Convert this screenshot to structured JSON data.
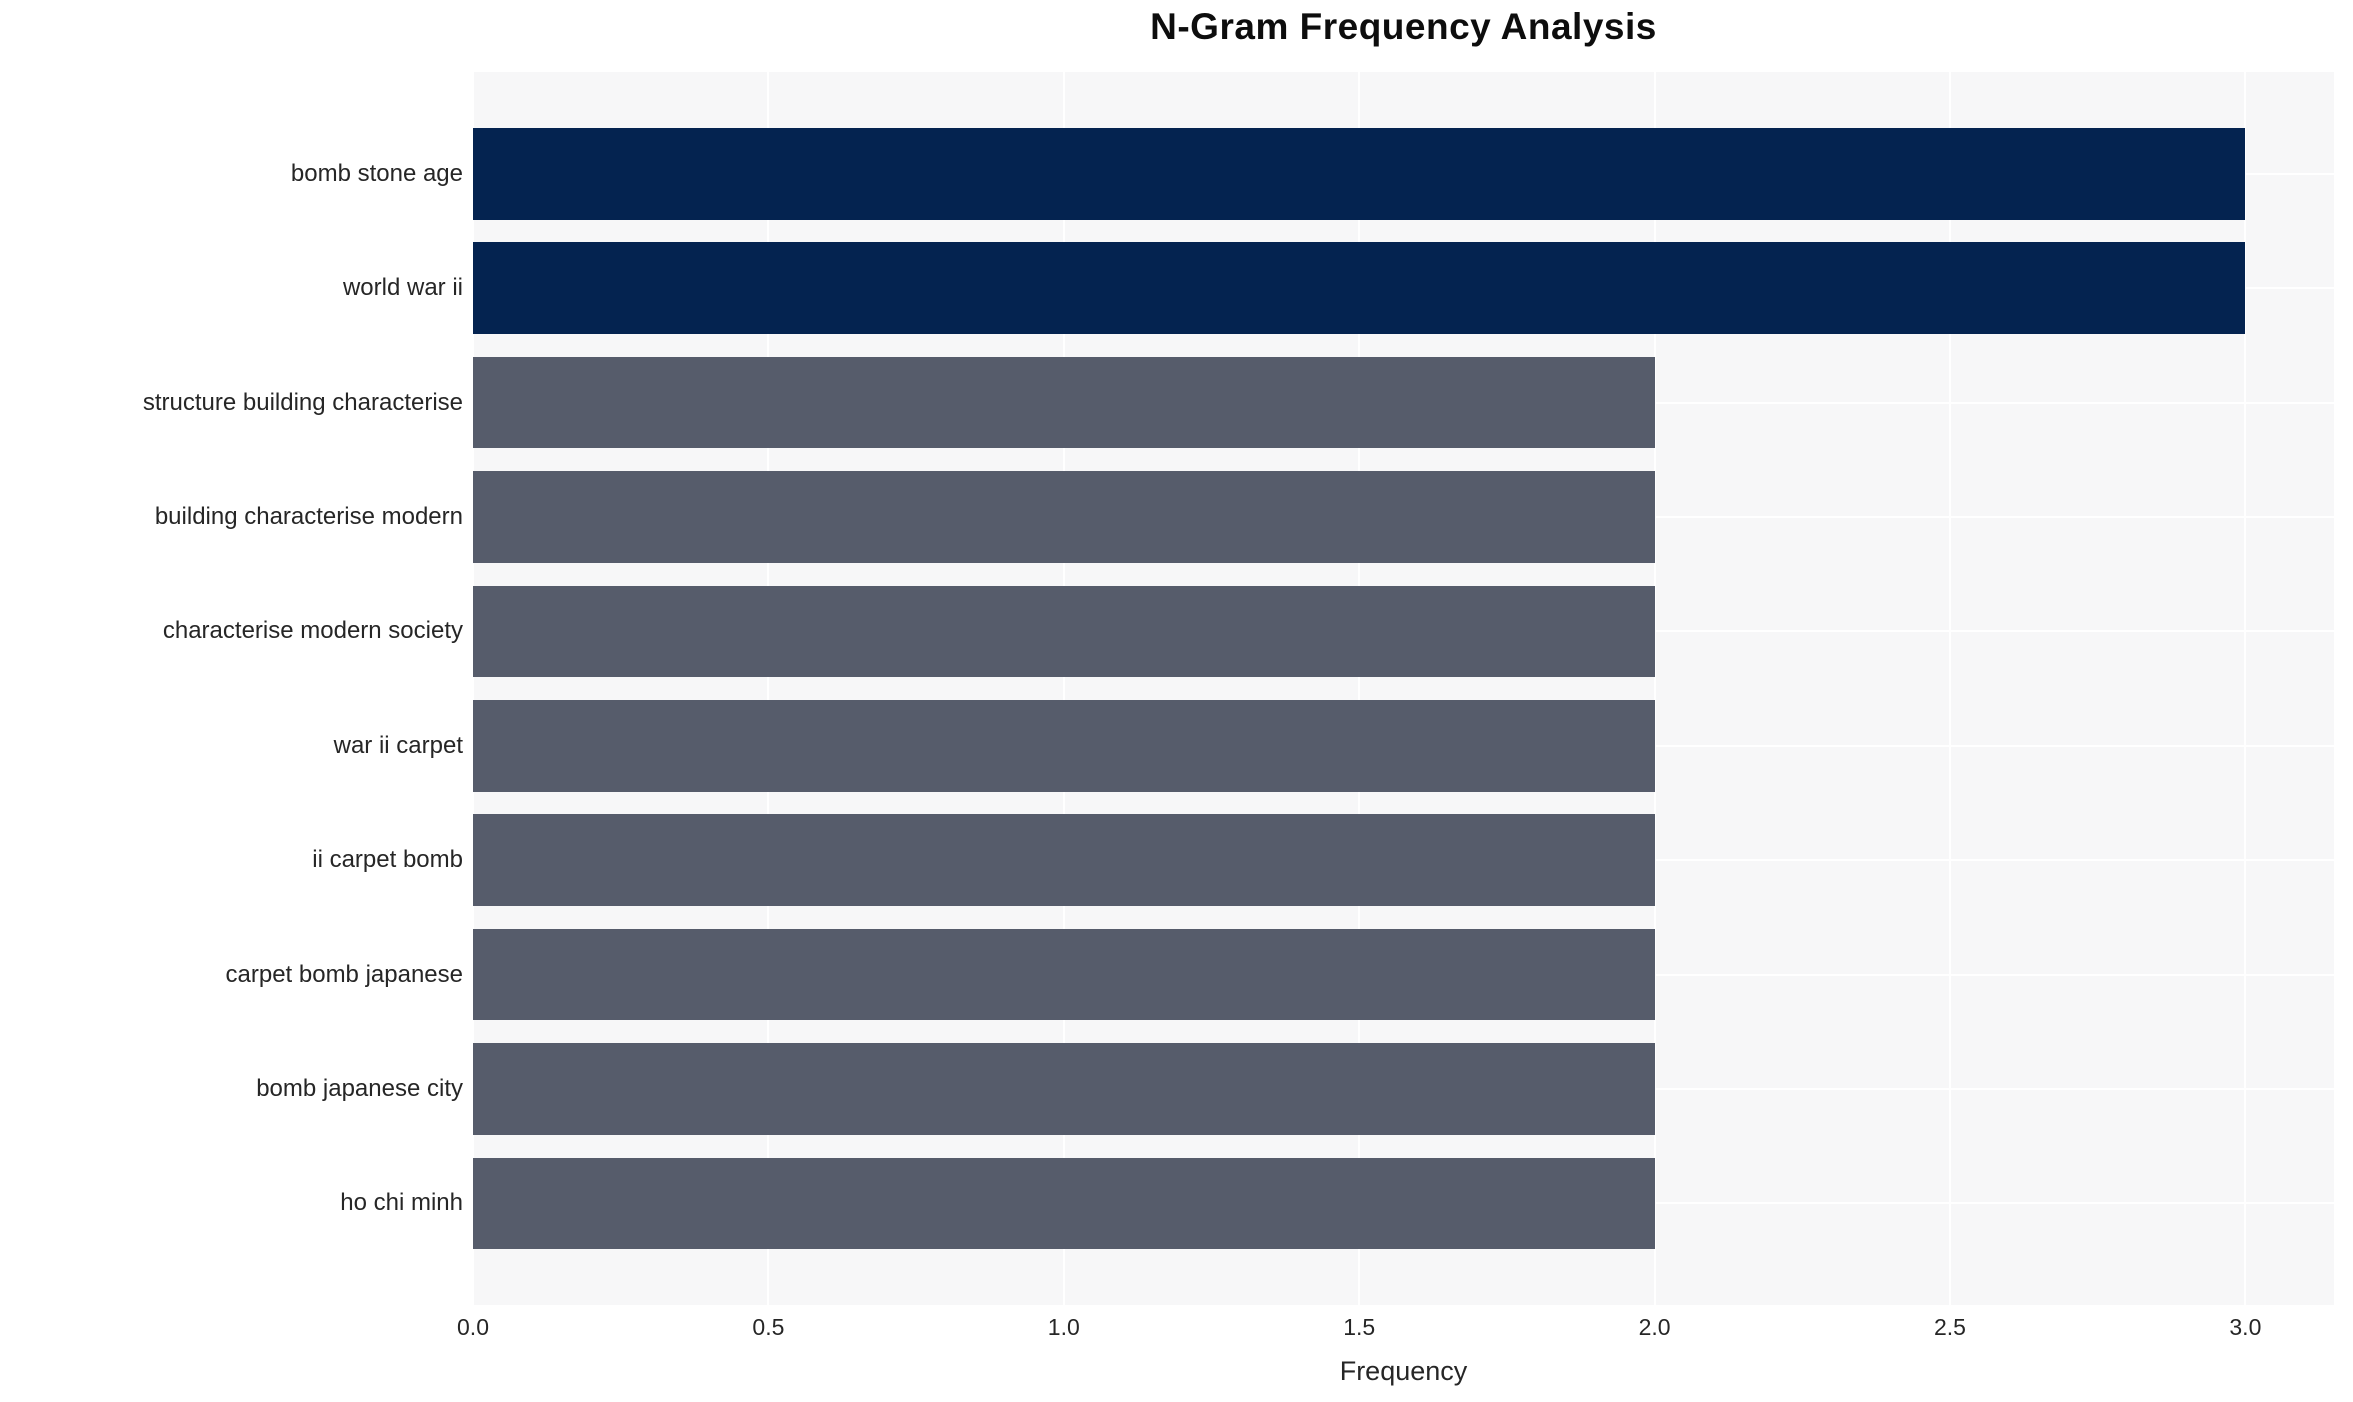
{
  "chart_data": {
    "type": "bar",
    "orientation": "horizontal",
    "title": "N-Gram Frequency Analysis",
    "xlabel": "Frequency",
    "ylabel": "",
    "categories": [
      "bomb stone age",
      "world war ii",
      "structure building characterise",
      "building characterise modern",
      "characterise modern society",
      "war ii carpet",
      "ii carpet bomb",
      "carpet bomb japanese",
      "bomb japanese city",
      "ho chi minh"
    ],
    "values": [
      3,
      3,
      2,
      2,
      2,
      2,
      2,
      2,
      2,
      2
    ],
    "bar_colors": [
      "#042350",
      "#042350",
      "#565c6b",
      "#565c6b",
      "#565c6b",
      "#565c6b",
      "#565c6b",
      "#565c6b",
      "#565c6b",
      "#565c6b"
    ],
    "colors": {
      "frequency_3": "#042350",
      "frequency_2": "#565c6b"
    },
    "xlim": [
      0,
      3.15
    ],
    "xticks": [
      0,
      0.5,
      1,
      1.5,
      2,
      2.5,
      3
    ],
    "xtick_labels": [
      "0.0",
      "0.5",
      "1.0",
      "1.5",
      "2.0",
      "2.5",
      "3.0"
    ],
    "grid": true,
    "grid_color": "#ffffff",
    "plot_background": "#f7f7f8",
    "legend": false
  }
}
